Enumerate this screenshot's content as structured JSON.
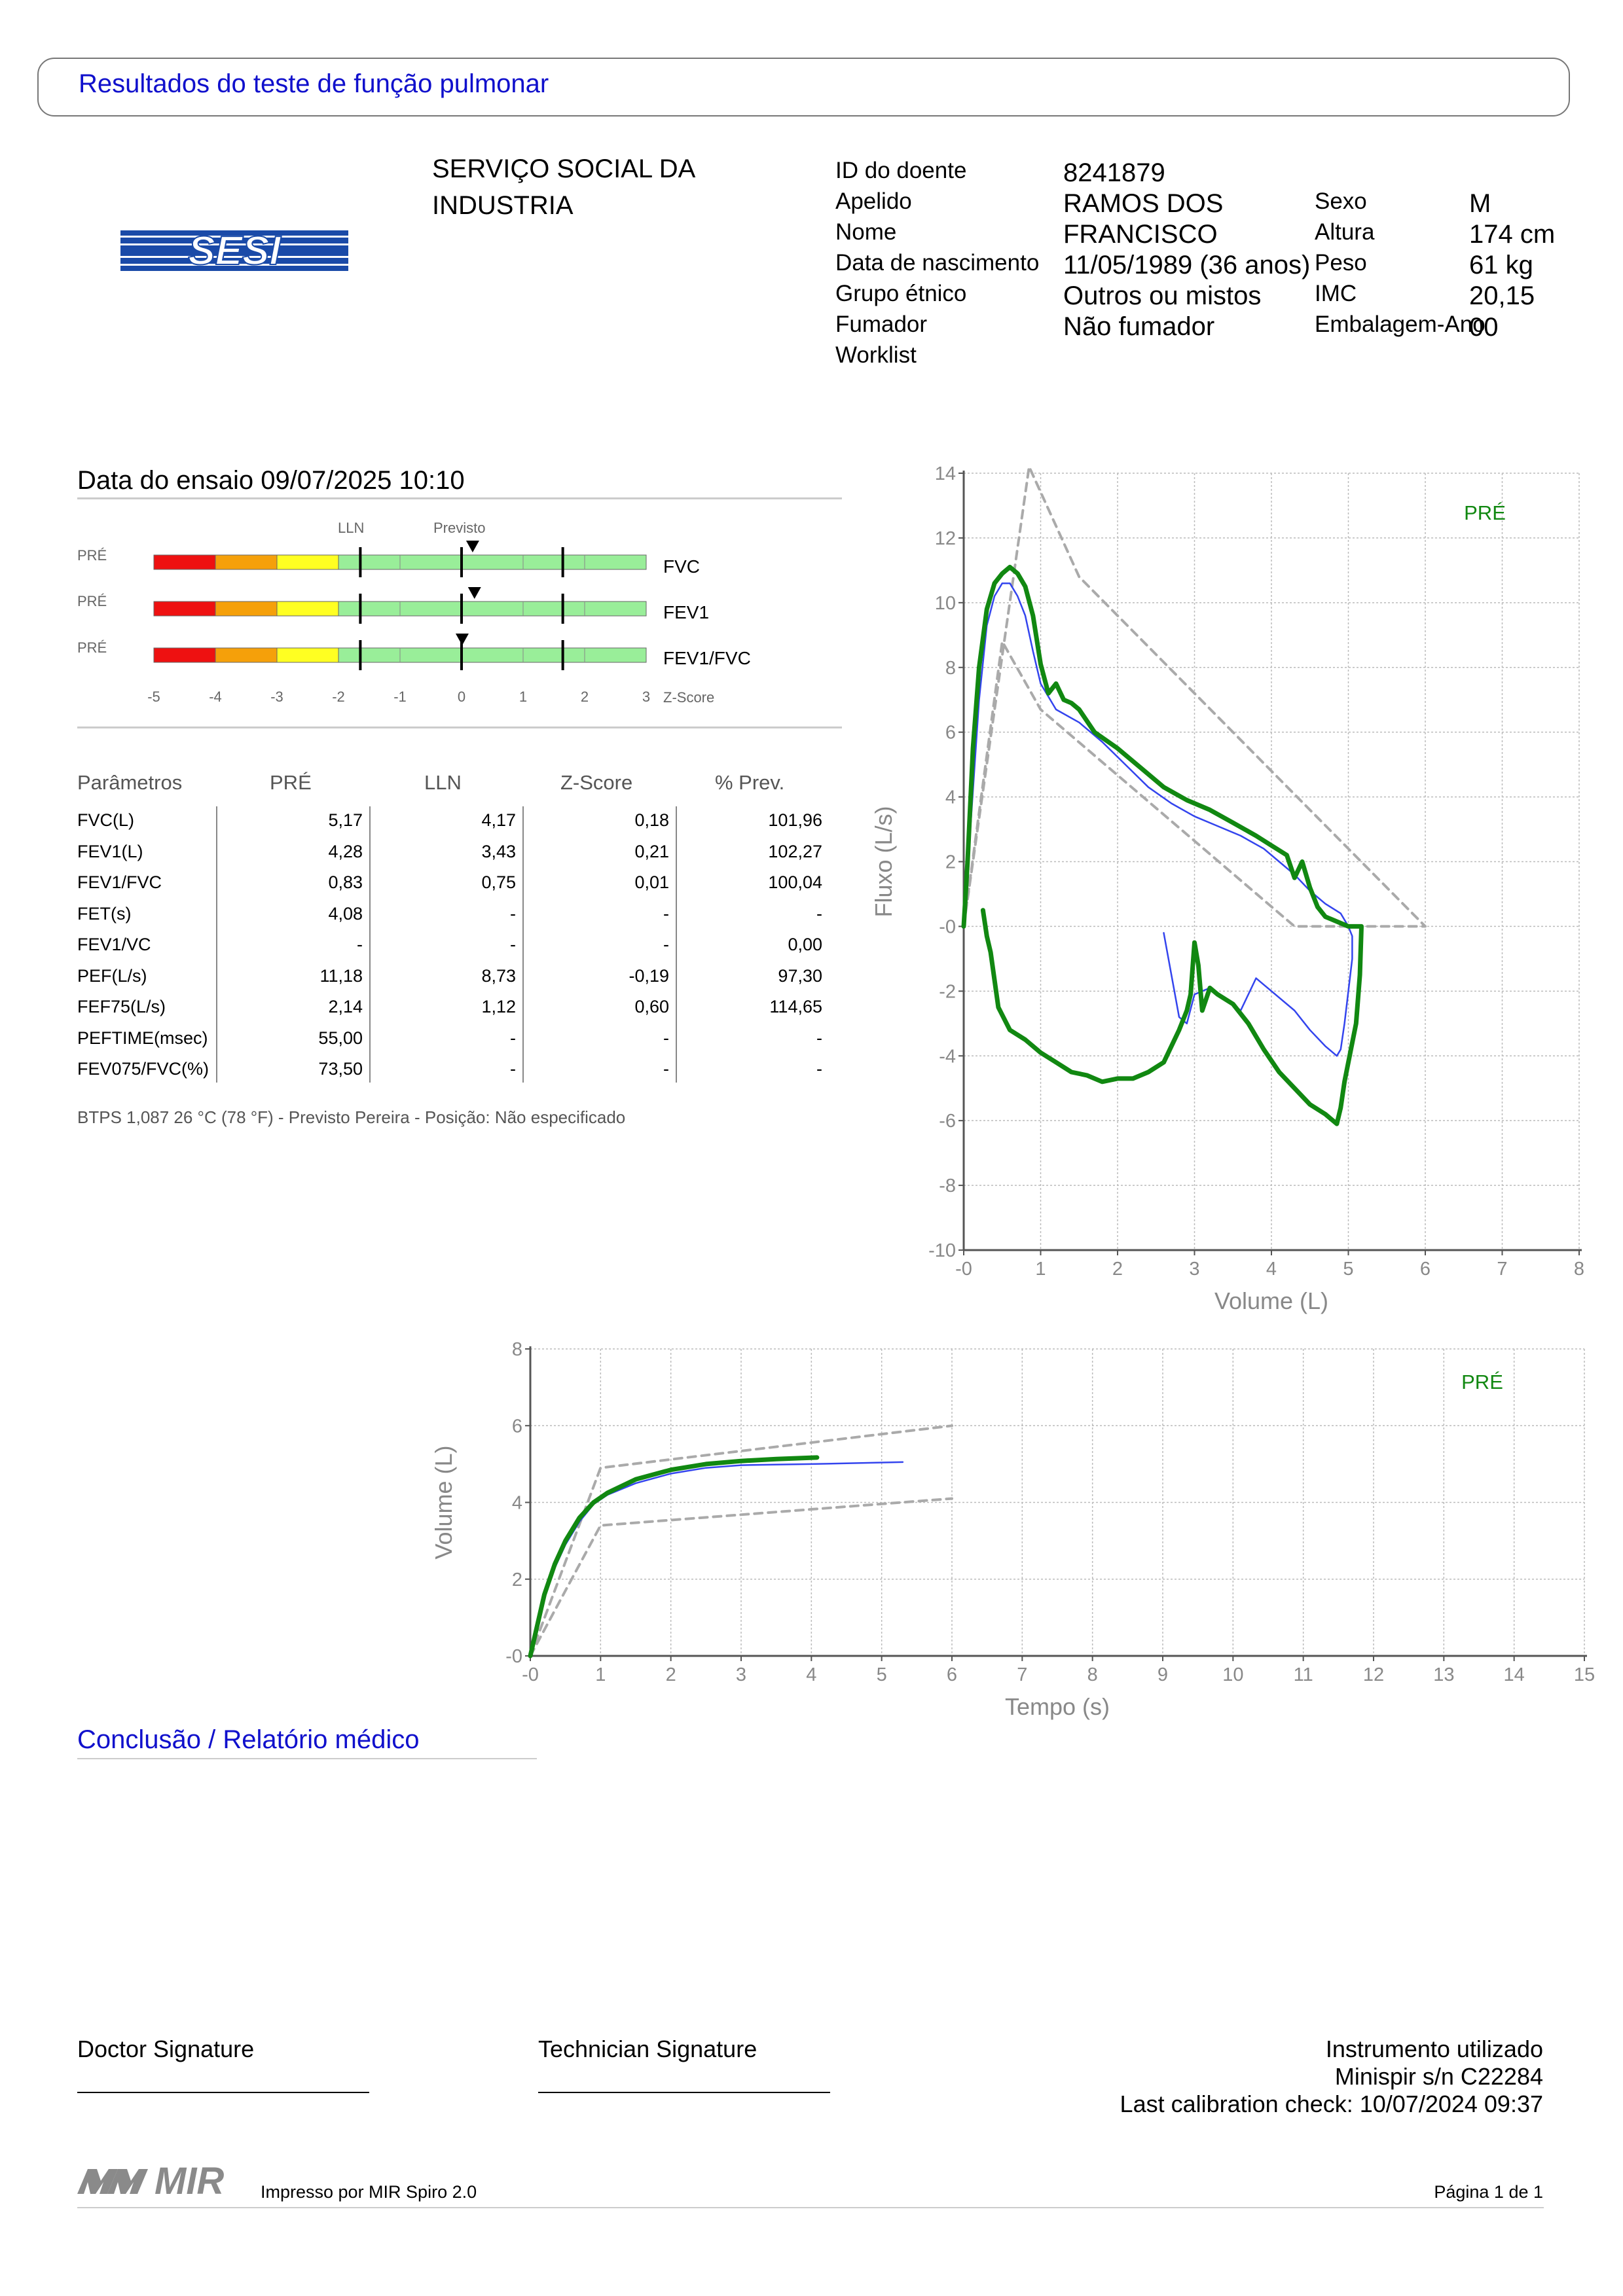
{
  "header": {
    "title": "Resultados do teste de função pulmonar"
  },
  "logo": {
    "text": "SESI",
    "color": "#1a4aa8"
  },
  "institution": {
    "line1": "SERVIÇO SOCIAL DA",
    "line2": "INDUSTRIA"
  },
  "patient": {
    "id_label": "ID do doente",
    "id": "8241879",
    "surname_label": "Apelido",
    "surname": "RAMOS DOS",
    "name_label": "Nome",
    "name": "FRANCISCO",
    "dob_label": "Data de nascimento",
    "dob": "11/05/1989 (36 anos)",
    "ethnic_label": "Grupo étnico",
    "ethnic": "Outros ou mistos",
    "smoker_label": "Fumador",
    "smoker": "Não fumador",
    "worklist_label": "Worklist",
    "sex_label": "Sexo",
    "sex": "M",
    "height_label": "Altura",
    "height": "174 cm",
    "weight_label": "Peso",
    "weight": "61 kg",
    "bmi_label": "IMC",
    "bmi": "20,15",
    "pack_label": "Embalagem-Ano",
    "pack": "00"
  },
  "test_date": "Data do ensaio 09/07/2025 10:10",
  "zscore_panel": {
    "lln_label": "LLN",
    "predicted_label": "Previsto",
    "axis_label": "Z-Score",
    "ticks": [
      "-5",
      "-4",
      "-3",
      "-2",
      "-1",
      "0",
      "1",
      "2",
      "3"
    ],
    "rows": [
      {
        "tag": "PRÉ",
        "name": "FVC",
        "z": 0.18
      },
      {
        "tag": "PRÉ",
        "name": "FEV1",
        "z": 0.21
      },
      {
        "tag": "PRÉ",
        "name": "FEV1/FVC",
        "z": 0.01
      }
    ],
    "colors": {
      "red": "#ee1111",
      "orange": "#f5a00a",
      "yellow": "#ffff22",
      "green": "#99ee99"
    }
  },
  "table": {
    "headers": [
      "Parâmetros",
      "PRÉ",
      "LLN",
      "Z-Score",
      "% Prev."
    ],
    "rows": [
      [
        "FVC(L)",
        "5,17",
        "4,17",
        "0,18",
        "101,96"
      ],
      [
        "FEV1(L)",
        "4,28",
        "3,43",
        "0,21",
        "102,27"
      ],
      [
        "FEV1/FVC",
        "0,83",
        "0,75",
        "0,01",
        "100,04"
      ],
      [
        "FET(s)",
        "4,08",
        "-",
        "-",
        "-"
      ],
      [
        "FEV1/VC",
        "-",
        "-",
        "-",
        "0,00"
      ],
      [
        "PEF(L/s)",
        "11,18",
        "8,73",
        "-0,19",
        "97,30"
      ],
      [
        "FEF75(L/s)",
        "2,14",
        "1,12",
        "0,60",
        "114,65"
      ],
      [
        "PEFTIME(msec)",
        "55,00",
        "-",
        "-",
        "-"
      ],
      [
        "FEV075/FVC(%)",
        "73,50",
        "-",
        "-",
        "-"
      ]
    ]
  },
  "btps": "BTPS 1,087 26 °C (78 °F) - Previsto Pereira - Posição: Não especificado",
  "chart_data": [
    {
      "type": "line",
      "xlabel": "Volume (L)",
      "ylabel": "Fluxo (L/s)",
      "legend": "PRÉ",
      "xlim": [
        0,
        8
      ],
      "ylim": [
        -10,
        14
      ],
      "xticks": [
        "-0",
        "1",
        "2",
        "3",
        "4",
        "5",
        "6",
        "7",
        "8"
      ],
      "yticks": [
        "-10",
        "-8",
        "-6",
        "-4",
        "-2",
        "-0",
        "2",
        "4",
        "6",
        "8",
        "10",
        "12",
        "14"
      ],
      "series": [
        {
          "color": "#118811",
          "x": [
            0.0,
            0.05,
            0.12,
            0.2,
            0.3,
            0.4,
            0.5,
            0.6,
            0.7,
            0.8,
            0.9,
            1.0,
            1.1,
            1.2,
            1.3,
            1.4,
            1.5,
            1.7,
            2.0,
            2.3,
            2.6,
            2.9,
            3.2,
            3.5,
            3.8,
            4.0,
            4.2,
            4.3,
            4.4,
            4.5,
            4.6,
            4.7,
            4.8,
            5.0,
            5.17,
            5.15,
            5.1,
            5.0,
            4.95,
            4.9,
            4.85,
            4.7,
            4.5,
            4.3,
            4.1,
            3.9,
            3.7,
            3.5,
            3.3,
            3.2,
            3.1,
            3.05,
            3.0,
            2.95,
            2.9,
            2.8,
            2.6,
            2.4,
            2.2,
            2.0,
            1.8,
            1.6,
            1.4,
            1.2,
            1.0,
            0.8,
            0.6,
            0.45,
            0.35,
            0.3,
            0.25
          ],
          "y": [
            0.0,
            2.0,
            5.5,
            8.0,
            9.8,
            10.6,
            10.9,
            11.1,
            10.9,
            10.5,
            9.6,
            8.1,
            7.2,
            7.5,
            7.0,
            6.9,
            6.7,
            6.0,
            5.5,
            4.9,
            4.3,
            3.9,
            3.6,
            3.2,
            2.8,
            2.5,
            2.2,
            1.5,
            2.0,
            1.2,
            0.6,
            0.3,
            0.2,
            0.0,
            0.0,
            -1.5,
            -3.0,
            -4.2,
            -4.8,
            -5.6,
            -6.1,
            -5.8,
            -5.5,
            -5.0,
            -4.5,
            -3.8,
            -3.0,
            -2.4,
            -2.1,
            -1.9,
            -2.6,
            -1.2,
            -0.5,
            -2.1,
            -2.6,
            -3.2,
            -4.2,
            -4.5,
            -4.7,
            -4.7,
            -4.8,
            -4.6,
            -4.5,
            -4.2,
            -3.9,
            -3.5,
            -3.2,
            -2.5,
            -0.8,
            -0.3,
            0.5
          ]
        },
        {
          "color": "#3344ee",
          "x": [
            0.0,
            0.1,
            0.2,
            0.3,
            0.4,
            0.5,
            0.6,
            0.7,
            0.8,
            0.9,
            1.0,
            1.2,
            1.5,
            1.8,
            2.1,
            2.4,
            2.7,
            3.0,
            3.3,
            3.6,
            3.9,
            4.1,
            4.3,
            4.5,
            4.7,
            4.9,
            5.0,
            5.05,
            5.05,
            5.0,
            4.95,
            4.9,
            4.85,
            4.7,
            4.5,
            4.3,
            4.0,
            3.8,
            3.6,
            3.4,
            3.2,
            3.0,
            2.9,
            2.8,
            2.6
          ],
          "y": [
            0.0,
            3.5,
            7.0,
            9.3,
            10.2,
            10.6,
            10.6,
            10.2,
            9.6,
            8.5,
            7.5,
            6.7,
            6.3,
            5.7,
            5.0,
            4.3,
            3.8,
            3.4,
            3.1,
            2.8,
            2.4,
            2.0,
            1.6,
            1.1,
            0.7,
            0.4,
            0.0,
            -0.3,
            -1.0,
            -2.0,
            -3.0,
            -3.8,
            -4.0,
            -3.7,
            -3.2,
            -2.6,
            -2.0,
            -1.6,
            -2.6,
            -2.2,
            -1.9,
            -2.1,
            -3.0,
            -2.8,
            -0.2
          ]
        },
        {
          "color": "#aaaaaa",
          "x": [
            0.0,
            0.85,
            1.5,
            6.0,
            4.3,
            1.0,
            0.5,
            0.0
          ],
          "y": [
            0.0,
            14.2,
            10.8,
            0.0,
            0.0,
            6.7,
            8.8,
            0.0
          ]
        }
      ]
    },
    {
      "type": "line",
      "xlabel": "Tempo (s)",
      "ylabel": "Volume (L)",
      "legend": "PRÉ",
      "xlim": [
        0,
        15
      ],
      "ylim": [
        0,
        8
      ],
      "xticks": [
        "-0",
        "1",
        "2",
        "3",
        "4",
        "5",
        "6",
        "7",
        "8",
        "9",
        "10",
        "11",
        "12",
        "13",
        "14",
        "15"
      ],
      "yticks": [
        "-0",
        "2",
        "4",
        "6",
        "8"
      ],
      "series": [
        {
          "color": "#118811",
          "x": [
            0.0,
            0.1,
            0.2,
            0.35,
            0.5,
            0.7,
            0.9,
            1.1,
            1.5,
            2.0,
            2.5,
            3.0,
            3.5,
            4.08
          ],
          "y": [
            0.0,
            0.8,
            1.6,
            2.4,
            3.0,
            3.6,
            4.0,
            4.25,
            4.6,
            4.85,
            5.0,
            5.08,
            5.13,
            5.17
          ]
        },
        {
          "color": "#3344ee",
          "x": [
            0.0,
            0.1,
            0.2,
            0.35,
            0.5,
            0.7,
            0.9,
            1.1,
            1.5,
            2.0,
            2.5,
            3.0,
            4.0,
            5.3
          ],
          "y": [
            0.0,
            0.7,
            1.5,
            2.3,
            2.9,
            3.5,
            3.95,
            4.2,
            4.5,
            4.75,
            4.9,
            4.97,
            5.0,
            5.05
          ]
        },
        {
          "color": "#aaaaaa",
          "x": [
            0.0,
            1.0,
            6.0
          ],
          "y": [
            0.0,
            4.9,
            6.0
          ]
        },
        {
          "color": "#aaaaaa",
          "x": [
            0.0,
            1.0,
            6.0
          ],
          "y": [
            0.0,
            3.4,
            4.1
          ]
        }
      ]
    }
  ],
  "conclusion_title": "Conclusão / Relatório médico",
  "signatures": {
    "doctor": "Doctor Signature",
    "technician": "Technician Signature"
  },
  "instrument": {
    "line1": "Instrumento utilizado",
    "line2": "Minispir s/n C22284",
    "line3": "Last calibration check: 10/07/2024 09:37"
  },
  "footer": {
    "brand": "MIR",
    "printed": "Impresso por MIR Spiro 2.0",
    "page": "Página 1 de 1"
  }
}
